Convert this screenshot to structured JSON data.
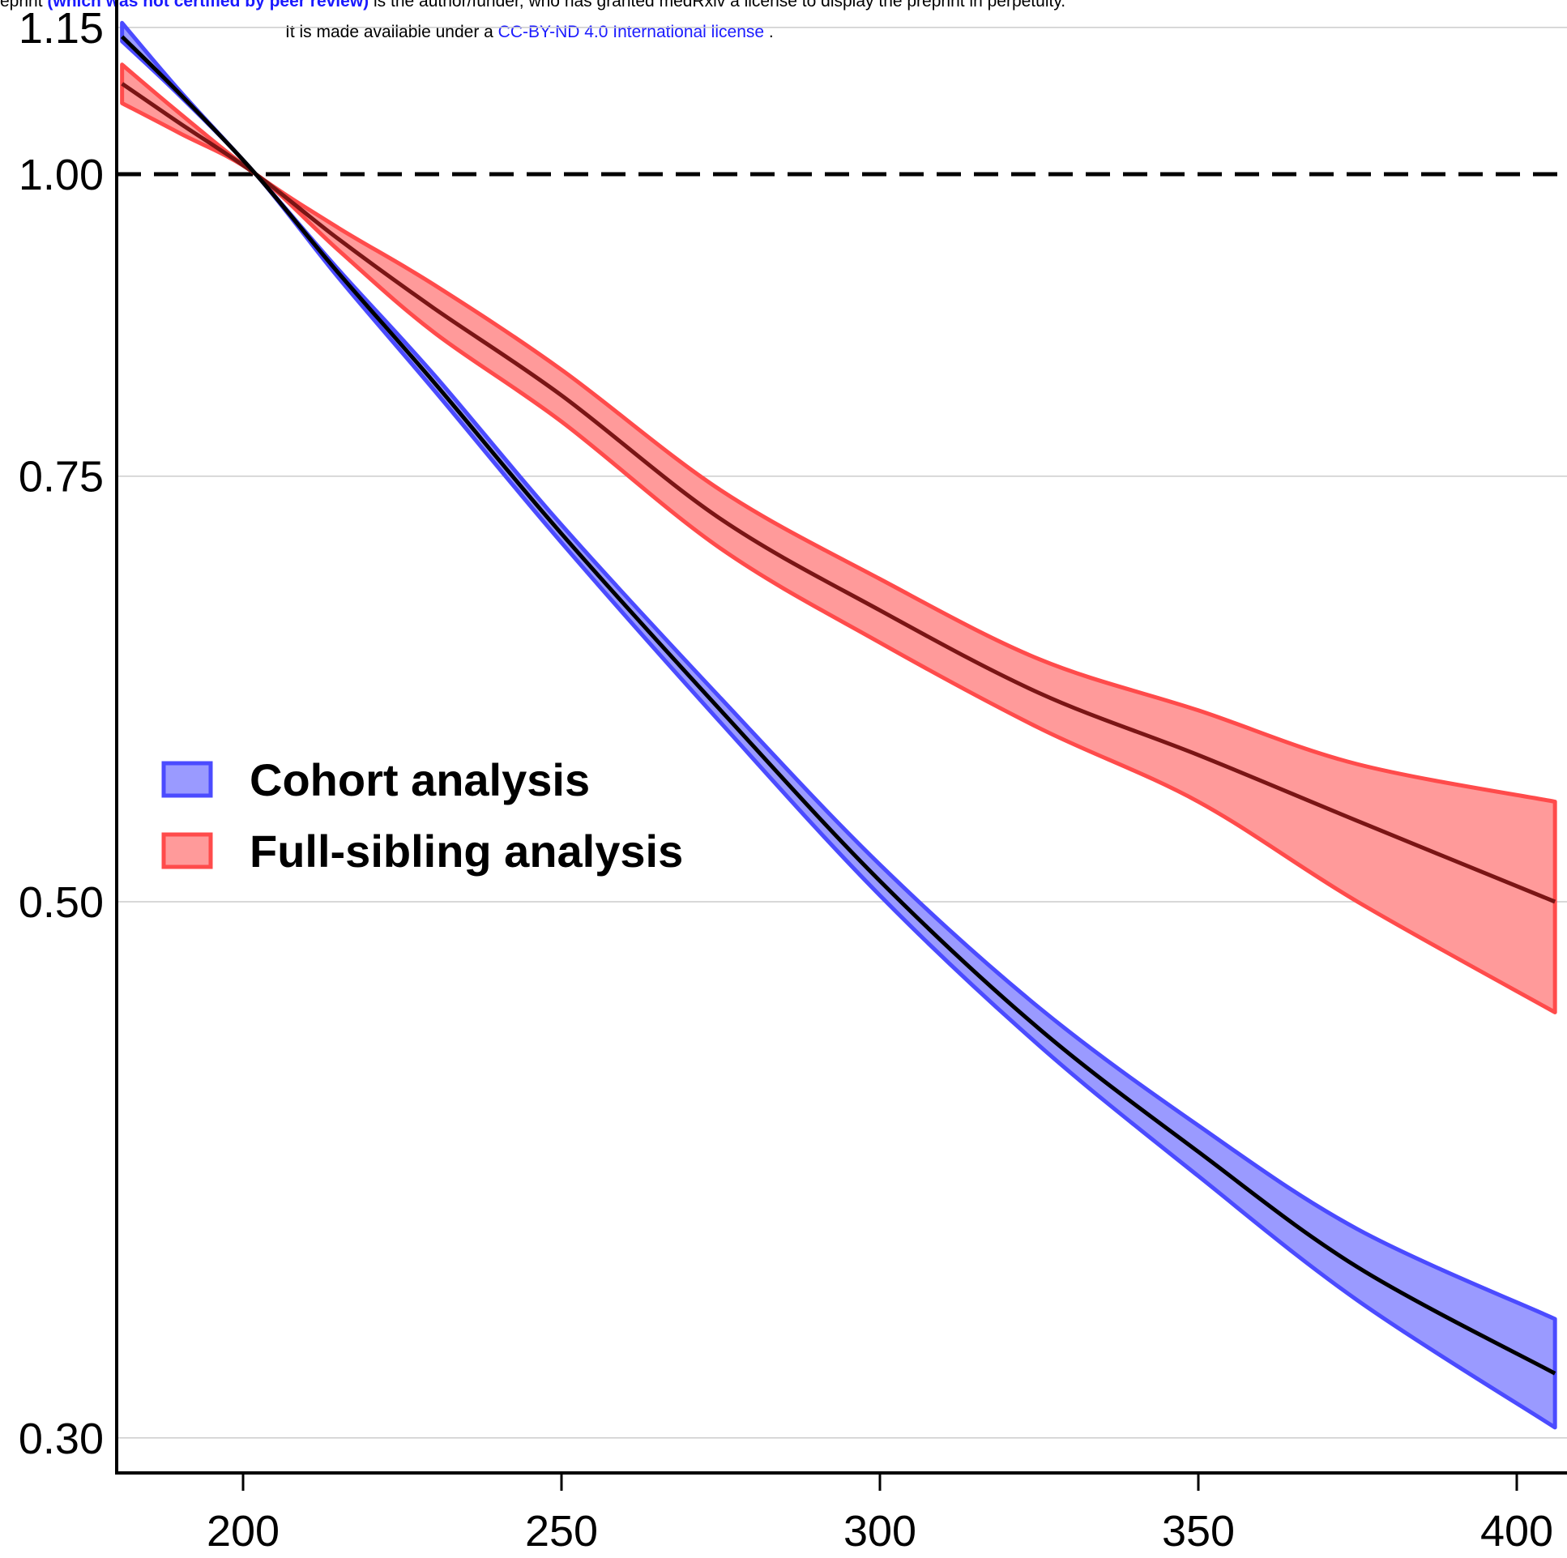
{
  "notice": {
    "line1_prefix": "eprint",
    "line1_link": "(which was not certified by peer review)",
    "line1_suffix": "is the author/funder, who has granted medRxiv a license to display the preprint in perpetuity.",
    "line2_prefix": "It is made available under a",
    "line2_link": "CC-BY-ND 4.0 International license",
    "line2_suffix": "."
  },
  "chart_data": {
    "type": "line",
    "title": "",
    "xlabel": "",
    "ylabel": "",
    "yscale": "log",
    "xlim": [
      180,
      407
    ],
    "ylim": [
      0.29,
      1.17
    ],
    "xticks": [
      200,
      250,
      300,
      350,
      400
    ],
    "xtick_labels": [
      "200",
      "250",
      "300",
      "350",
      "400"
    ],
    "yticks": [
      0.3,
      0.5,
      0.75,
      1.0,
      1.15
    ],
    "ytick_labels": [
      "0.30",
      "0.50",
      "0.75",
      "1.00",
      "1.15"
    ],
    "grid": "horizontal",
    "reference_line": {
      "y": 1.0,
      "style": "dashed",
      "color": "#000000"
    },
    "legend": {
      "position": "center-left",
      "entries": [
        "Cohort analysis",
        "Full-sibling analysis"
      ]
    },
    "series": [
      {
        "name": "Cohort analysis",
        "line_color": "#000000",
        "fill_color": "#9a9aff",
        "edge_color": "#4b4bff",
        "x": [
          181,
          190,
          202,
          215,
          230,
          250,
          275,
          300,
          325,
          350,
          375,
          406
        ],
        "y": [
          1.14,
          1.08,
          1.0,
          0.91,
          0.82,
          0.71,
          0.6,
          0.51,
          0.443,
          0.394,
          0.353,
          0.319
        ],
        "lower": [
          1.135,
          1.078,
          1.0,
          0.906,
          0.814,
          0.704,
          0.593,
          0.503,
          0.436,
          0.385,
          0.342,
          0.303
        ],
        "upper": [
          1.155,
          1.083,
          1.0,
          0.913,
          0.826,
          0.716,
          0.607,
          0.518,
          0.452,
          0.404,
          0.366,
          0.336
        ]
      },
      {
        "name": "Full-sibling analysis",
        "line_color": "#7a1515",
        "fill_color": "#ff9a9a",
        "edge_color": "#ff4b4b",
        "x": [
          181,
          190,
          202,
          215,
          230,
          250,
          275,
          300,
          325,
          350,
          375,
          406
        ],
        "y": [
          1.09,
          1.05,
          1.0,
          0.94,
          0.88,
          0.81,
          0.72,
          0.66,
          0.61,
          0.575,
          0.54,
          0.5
        ],
        "lower": [
          1.07,
          1.04,
          1.0,
          0.93,
          0.86,
          0.79,
          0.7,
          0.64,
          0.59,
          0.55,
          0.5,
          0.45
        ],
        "upper": [
          1.11,
          1.06,
          1.0,
          0.95,
          0.9,
          0.83,
          0.74,
          0.68,
          0.63,
          0.6,
          0.57,
          0.55
        ]
      }
    ]
  }
}
